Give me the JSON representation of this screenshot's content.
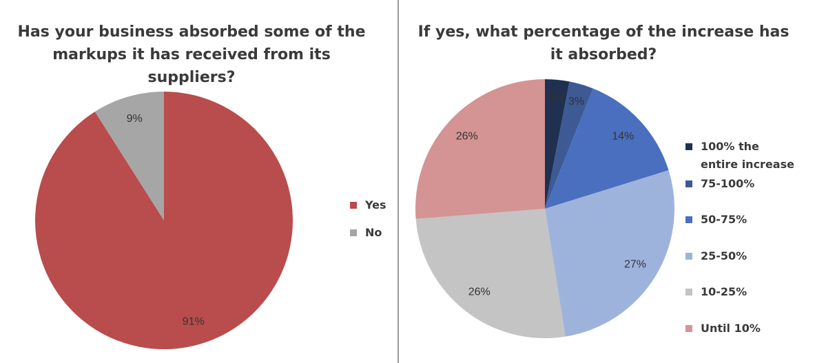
{
  "chart_data": [
    {
      "type": "pie",
      "title": "Has your business absorbed some of the markups it has received from its suppliers?",
      "categories": [
        "Yes",
        "No"
      ],
      "values": [
        91,
        9
      ],
      "value_labels": [
        "91%",
        "9%"
      ],
      "colors": [
        "#b94c4c",
        "#a6a6a6"
      ]
    },
    {
      "type": "pie",
      "title": "If yes, what percentage of the increase has it absorbed?",
      "categories": [
        "100% the entire increase",
        "75-100%",
        "50-75%",
        "25-50%",
        "10-25%",
        "Until 10%"
      ],
      "values": [
        3,
        3,
        14,
        27,
        26,
        26
      ],
      "value_labels": [
        "3%",
        "3%",
        "14%",
        "27%",
        "26%",
        "26%"
      ],
      "colors": [
        "#1f3050",
        "#3d5a94",
        "#4a6fbf",
        "#9eb3dc",
        "#c4c4c4",
        "#d49494"
      ]
    }
  ]
}
